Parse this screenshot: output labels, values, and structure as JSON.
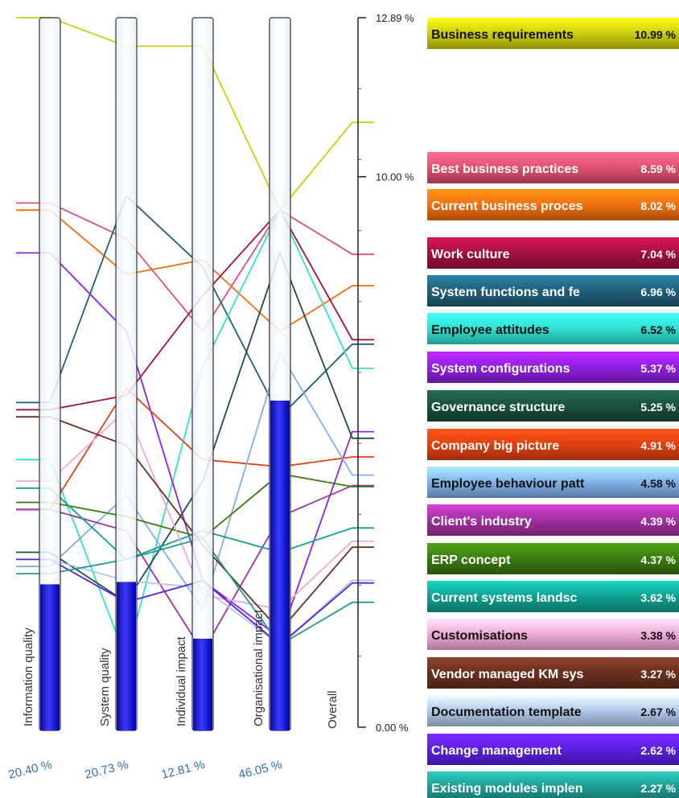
{
  "chart_data": {
    "type": "parallel-coordinates-sensitivity",
    "criteria": [
      {
        "name": "Information quality",
        "weight_label": "20.40 %",
        "weight": 20.4
      },
      {
        "name": "System quality",
        "weight_label": "20.73 %",
        "weight": 20.73
      },
      {
        "name": "Individual impact",
        "weight_label": "12.81 %",
        "weight": 12.81
      },
      {
        "name": "Organisational impact",
        "weight_label": "46.05 %",
        "weight": 46.05
      }
    ],
    "overall_axis": {
      "label": "Overall",
      "ylim": [
        0,
        12.89
      ],
      "ticks": [
        {
          "value": 12.89,
          "label": "12.89 %"
        },
        {
          "value": 10.0,
          "label": "10.00 %"
        },
        {
          "value": 0.0,
          "label": "0.00 %"
        }
      ]
    },
    "series": [
      {
        "name": "Business requirements",
        "value_label": "10.99 %",
        "overall": 10.99,
        "color": "#cccc11",
        "criterion_scores": [
          1.0,
          0.96,
          0.96,
          0.73
        ]
      },
      {
        "name": "Best business practices",
        "value_label": "8.59 %",
        "overall": 8.59,
        "color": "#e0506e",
        "criterion_scores": [
          0.74,
          0.69,
          0.56,
          0.73
        ]
      },
      {
        "name": "Current business processes",
        "value_label": "8.02 %",
        "overall": 8.02,
        "color": "#f07010",
        "criterion_scores": [
          0.73,
          0.64,
          0.66,
          0.56
        ]
      },
      {
        "name": "Work culture",
        "value_label": "7.04 %",
        "overall": 7.04,
        "color": "#a31040",
        "criterion_scores": [
          0.45,
          0.47,
          0.61,
          0.73
        ]
      },
      {
        "name": "System functions and features",
        "value_label": "6.96 %",
        "overall": 6.96,
        "color": "#20607a",
        "criterion_scores": [
          0.46,
          0.75,
          0.65,
          0.44
        ]
      },
      {
        "name": "Employee attitudes",
        "value_label": "6.52 %",
        "overall": 6.52,
        "color": "#30e0d0",
        "criterion_scores": [
          0.38,
          0.1,
          0.51,
          0.73
        ]
      },
      {
        "name": "System configurations",
        "value_label": "5.37 %",
        "overall": 5.37,
        "color": "#9020e0",
        "criterion_scores": [
          0.67,
          0.56,
          0.21,
          0.13
        ]
      },
      {
        "name": "Governance structure",
        "value_label": "5.25 %",
        "overall": 5.25,
        "color": "#1a5040",
        "criterion_scores": [
          0.25,
          0.18,
          0.35,
          0.67
        ]
      },
      {
        "name": "Company big picture",
        "value_label": "4.91 %",
        "overall": 4.91,
        "color": "#e04010",
        "criterion_scores": [
          0.31,
          0.48,
          0.38,
          0.37
        ]
      },
      {
        "name": "Employee behaviour patterns",
        "value_label": "4.58 %",
        "overall": 4.58,
        "color": "#80b0e8",
        "criterion_scores": [
          0.23,
          0.33,
          0.17,
          0.53
        ]
      },
      {
        "name": "Client's industry",
        "value_label": "4.39 %",
        "overall": 4.39,
        "color": "#a030a0",
        "criterion_scores": [
          0.31,
          0.28,
          0.11,
          0.3
        ]
      },
      {
        "name": "ERP concept",
        "value_label": "4.37 %",
        "overall": 4.37,
        "color": "#3a7a10",
        "criterion_scores": [
          0.32,
          0.3,
          0.27,
          0.36
        ]
      },
      {
        "name": "Current systems landscape",
        "value_label": "3.62 %",
        "overall": 3.62,
        "color": "#10a090",
        "criterion_scores": [
          0.34,
          0.24,
          0.28,
          0.25
        ]
      },
      {
        "name": "Customisations",
        "value_label": "3.38 %",
        "overall": 3.38,
        "color": "#f0a8d8",
        "criterion_scores": [
          0.35,
          0.45,
          0.19,
          0.17
        ]
      },
      {
        "name": "Vendor managed KM system",
        "value_label": "3.27 %",
        "overall": 3.27,
        "color": "#6a3020",
        "criterion_scores": [
          0.44,
          0.4,
          0.26,
          0.14
        ]
      },
      {
        "name": "Documentation templates",
        "value_label": "2.67 %",
        "overall": 2.67,
        "color": "#b0c8e8",
        "criterion_scores": [
          0.24,
          0.21,
          0.2,
          0.12
        ]
      },
      {
        "name": "Change management",
        "value_label": "2.62 %",
        "overall": 2.62,
        "color": "#5a20e0",
        "criterion_scores": [
          0.24,
          0.18,
          0.21,
          0.12
        ]
      },
      {
        "name": "Existing modules implemented",
        "value_label": "2.27 %",
        "overall": 2.27,
        "color": "#209a90",
        "criterion_scores": [
          0.22,
          0.24,
          0.27,
          0.12
        ]
      }
    ],
    "legend_labels": [
      "Business requirements",
      "Best business practices",
      "Current business proces",
      "Work culture",
      "System functions and fe",
      "Employee attitudes",
      "System configurations",
      "Governance structure",
      "Company big picture",
      "Employee behaviour patt",
      "Client's industry",
      "ERP concept",
      "Current systems landsc",
      "Customisations",
      "Vendor managed KM sys",
      "Documentation template",
      "Change management",
      "Existing modules implen"
    ]
  }
}
